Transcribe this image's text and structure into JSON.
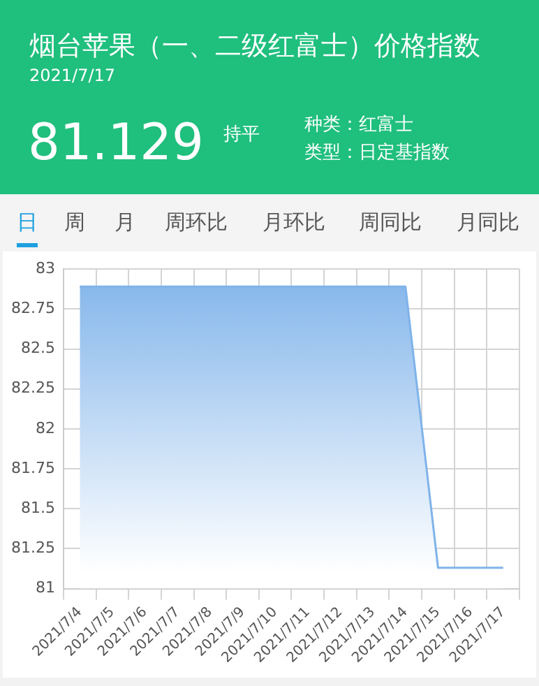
{
  "chart_data": {
    "type": "area",
    "title": "烟台苹果（一、二级红富士）价格指数",
    "subtitle": "2021/7/17",
    "annotations": [
      "81.129",
      "持平",
      "种类：红富士",
      "类型：日定基指数",
      "日",
      "周",
      "月",
      "周环比",
      "月环比",
      "周同比",
      "月同比"
    ],
    "categories": [
      "2021/7/4",
      "2021/7/5",
      "2021/7/6",
      "2021/7/7",
      "2021/7/8",
      "2021/7/9",
      "2021/7/10",
      "2021/7/11",
      "2021/7/12",
      "2021/7/13",
      "2021/7/14",
      "2021/7/15",
      "2021/7/16",
      "2021/7/17"
    ],
    "series": [
      {
        "color": "#7fb3ea",
        "values": [
          82.89,
          82.89,
          82.89,
          82.89,
          82.89,
          82.89,
          82.89,
          82.89,
          82.89,
          82.89,
          82.89,
          81.13,
          81.13,
          81.13
        ]
      }
    ],
    "ylim": [
      81,
      83
    ],
    "yticks": [
      81,
      81.25,
      81.5,
      81.75,
      82,
      82.25,
      82.5,
      82.75,
      83
    ],
    "grid": true,
    "legend": false,
    "marker": "none"
  }
}
